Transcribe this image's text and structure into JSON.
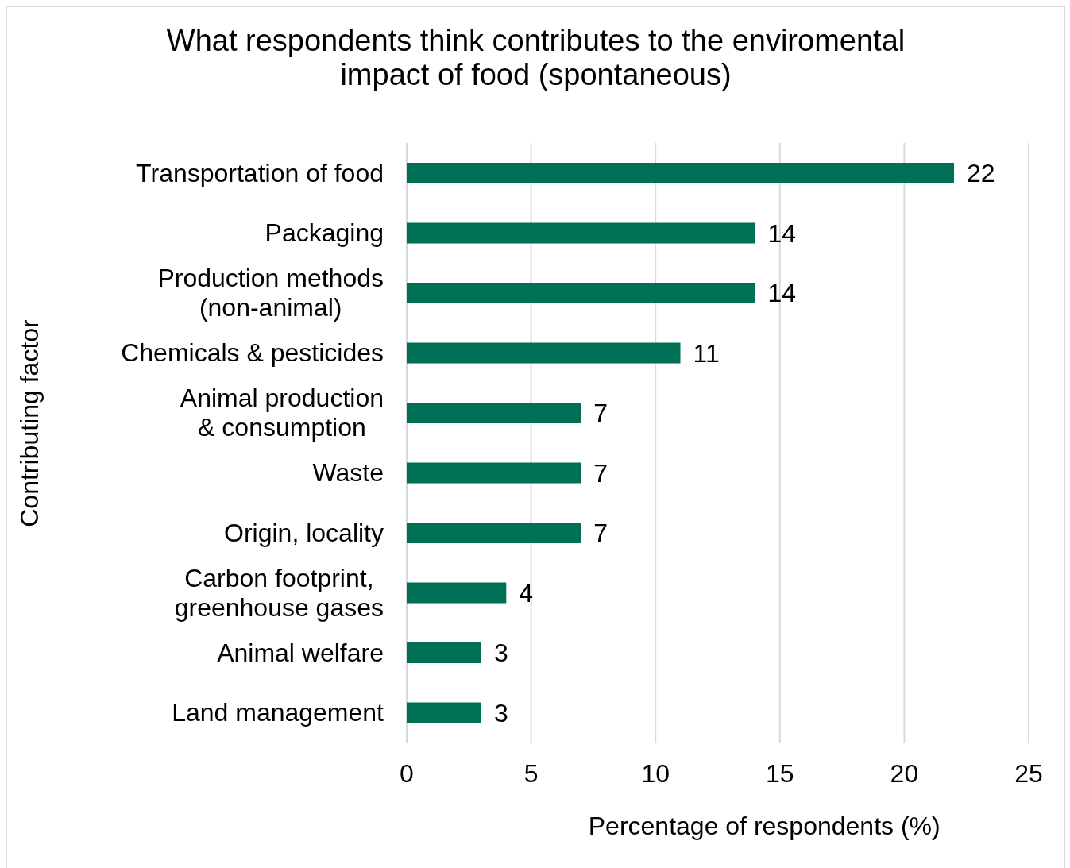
{
  "chart_data": {
    "type": "bar",
    "orientation": "horizontal",
    "title": "What respondents think contributes to the enviromental impact of food (spontaneous)",
    "xlabel": "Percentage of respondents (%)",
    "ylabel": "Contributing factor",
    "categories": [
      "Transportation of food",
      "Packaging",
      "Production methods (non-animal)",
      "Chemicals & pesticides",
      "Animal production & consumption",
      "Waste",
      "Origin, locality",
      "Carbon footprint, greenhouse gases",
      "Animal welfare",
      "Land management"
    ],
    "values": [
      22,
      14,
      14,
      11,
      7,
      7,
      7,
      4,
      3,
      3
    ],
    "color": "#007054",
    "xlim": [
      0,
      25
    ],
    "xticks": [
      0,
      5,
      10,
      15,
      20,
      25
    ],
    "grid": "x",
    "data_labels": true
  }
}
